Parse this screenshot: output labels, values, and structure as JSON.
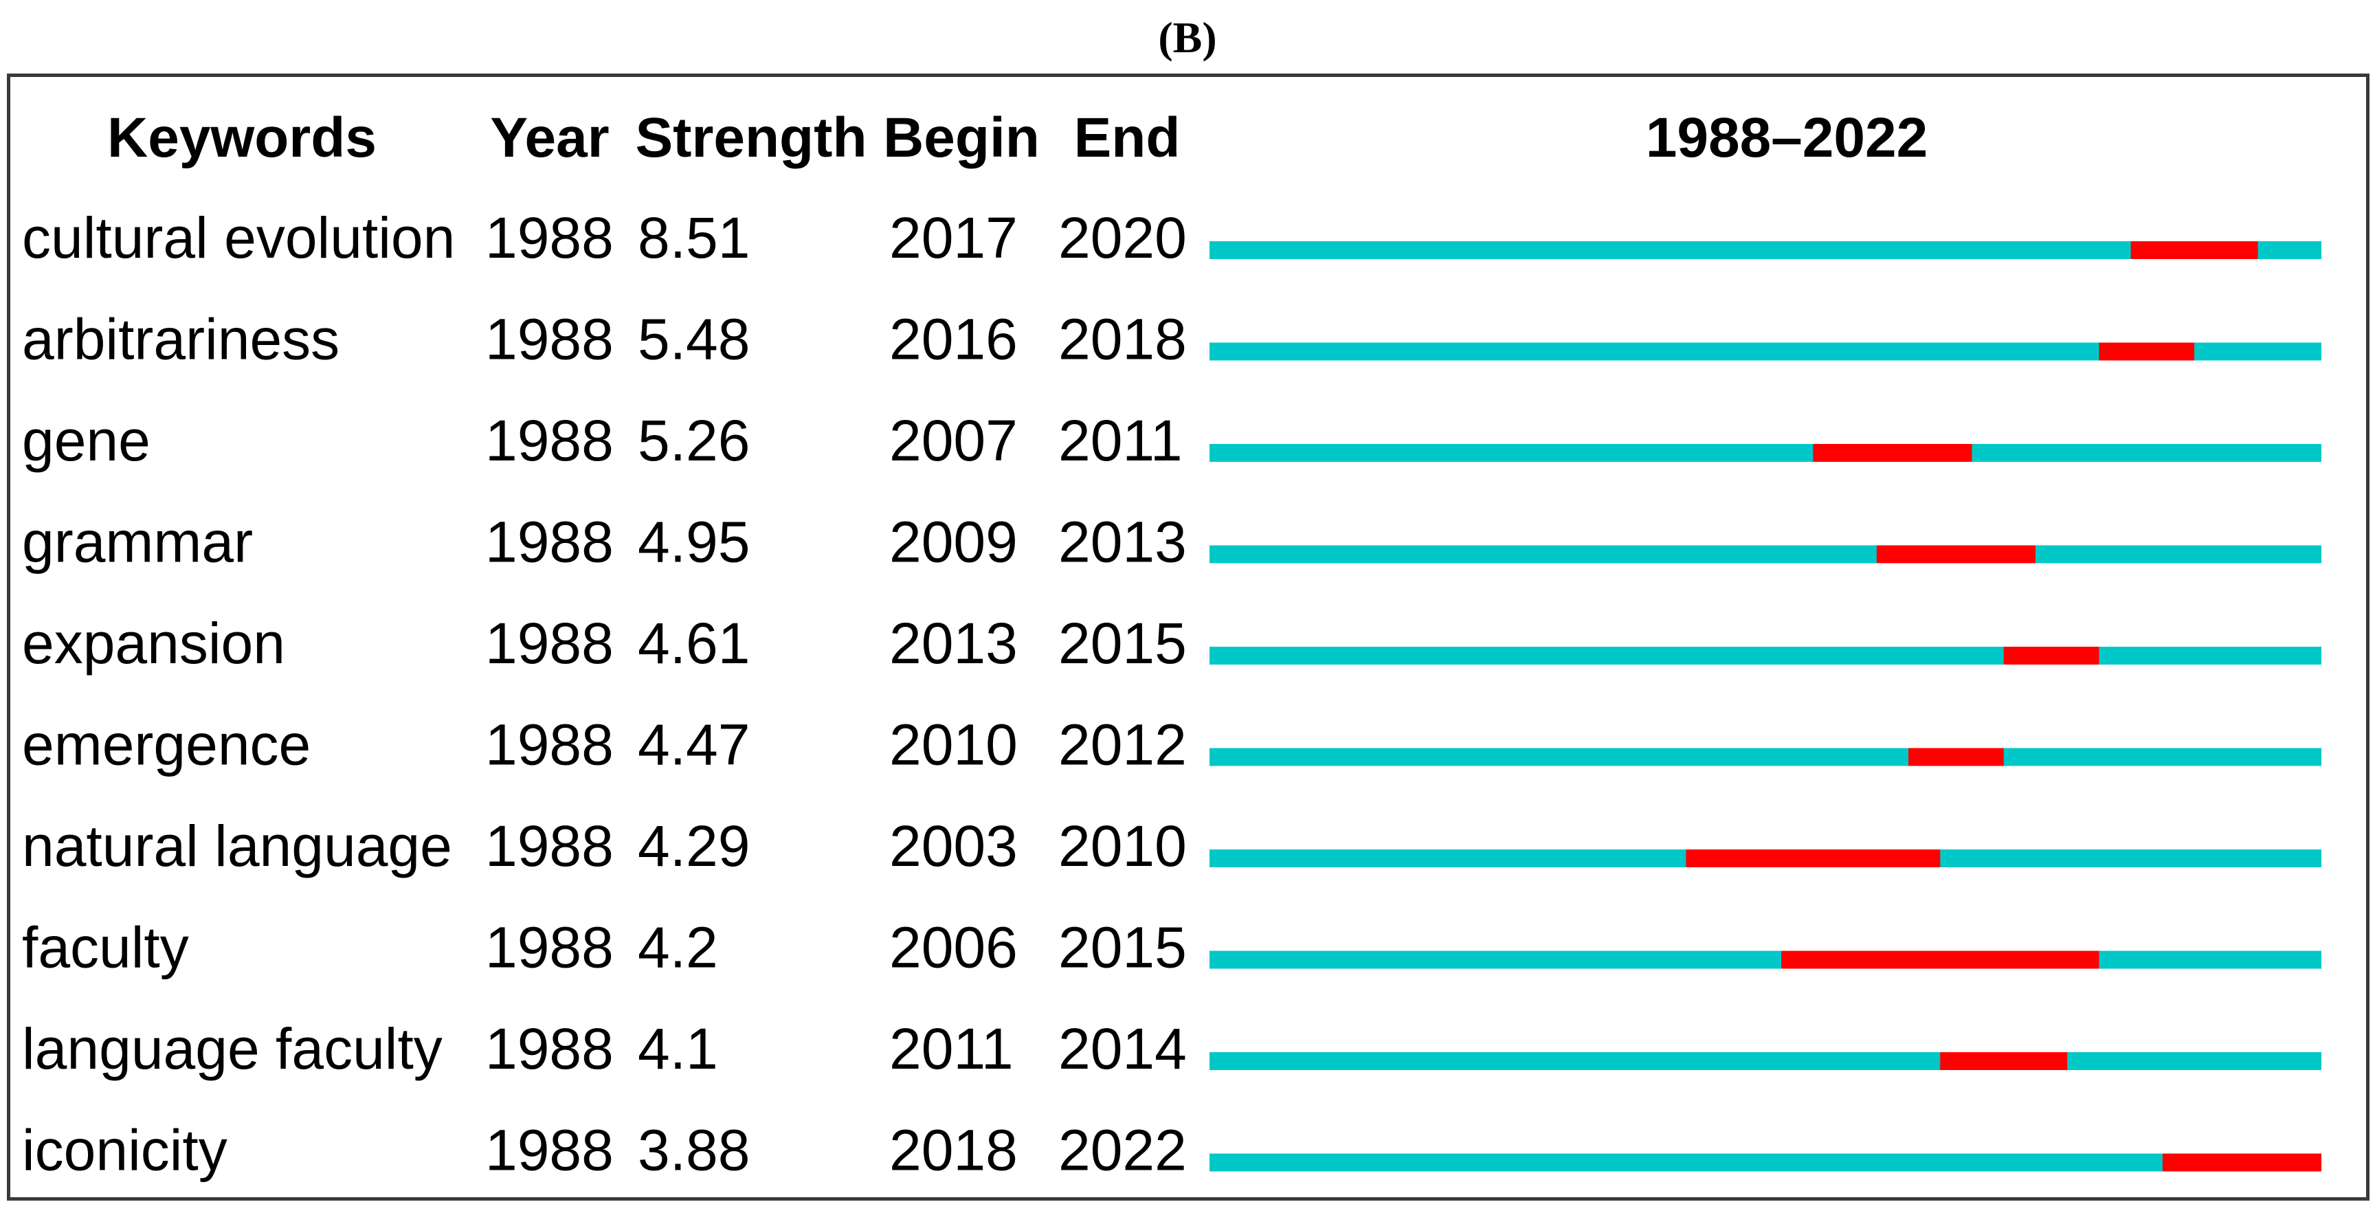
{
  "panel_label": "(B)",
  "chart_data": {
    "type": "table",
    "headers": {
      "keywords": "Keywords",
      "year": "Year",
      "strength": "Strength",
      "begin": "Begin",
      "end": "End",
      "timeline": "1988–2022"
    },
    "timeline_range": [
      1988,
      2022
    ],
    "colors": {
      "baseline": "#00c8c8",
      "burst": "#ff0000"
    },
    "rows": [
      {
        "keyword": "cultural evolution",
        "year": "1988",
        "strength": "8.51",
        "begin": "2017",
        "end": "2020"
      },
      {
        "keyword": "arbitrariness",
        "year": "1988",
        "strength": "5.48",
        "begin": "2016",
        "end": "2018"
      },
      {
        "keyword": "gene",
        "year": "1988",
        "strength": "5.26",
        "begin": "2007",
        "end": "2011"
      },
      {
        "keyword": "grammar",
        "year": "1988",
        "strength": "4.95",
        "begin": "2009",
        "end": "2013"
      },
      {
        "keyword": "expansion",
        "year": "1988",
        "strength": "4.61",
        "begin": "2013",
        "end": "2015"
      },
      {
        "keyword": "emergence",
        "year": "1988",
        "strength": "4.47",
        "begin": "2010",
        "end": "2012"
      },
      {
        "keyword": "natural language",
        "year": "1988",
        "strength": "4.29",
        "begin": "2003",
        "end": "2010"
      },
      {
        "keyword": "faculty",
        "year": "1988",
        "strength": "4.2",
        "begin": "2006",
        "end": "2015"
      },
      {
        "keyword": "language faculty",
        "year": "1988",
        "strength": "4.1",
        "begin": "2011",
        "end": "2014"
      },
      {
        "keyword": "iconicity",
        "year": "1988",
        "strength": "3.88",
        "begin": "2018",
        "end": "2022"
      }
    ]
  }
}
